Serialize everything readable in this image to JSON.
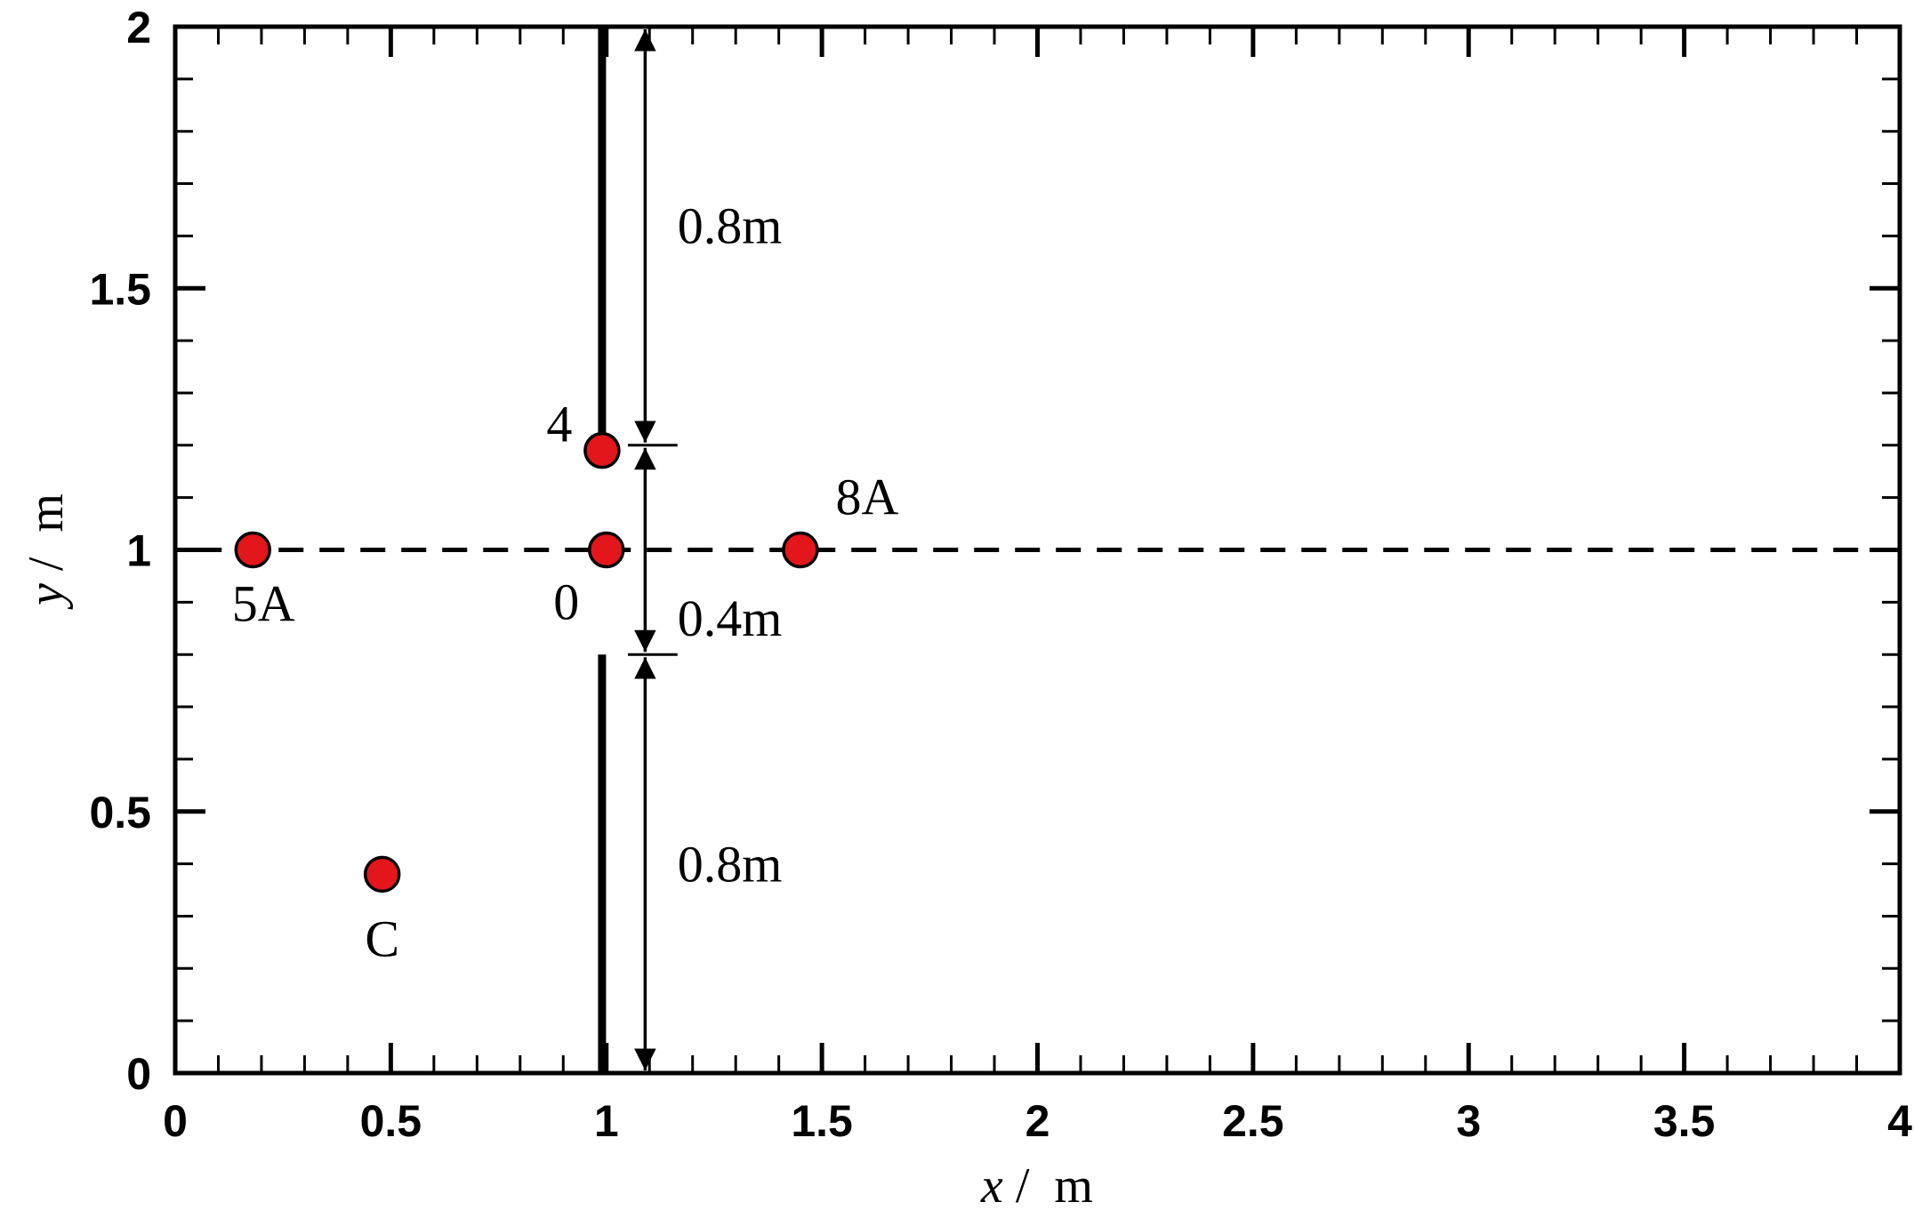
{
  "chart_data": {
    "type": "scatter",
    "xlabel_var": "x",
    "xlabel_unit": "m",
    "ylabel_var": "y",
    "ylabel_unit": "m",
    "xlim": [
      0,
      4
    ],
    "ylim": [
      0,
      2
    ],
    "x_ticks": [
      "0",
      "0.5",
      "1",
      "1.5",
      "2",
      "2.5",
      "3",
      "3.5",
      "4"
    ],
    "y_ticks": [
      "0",
      "0.5",
      "1",
      "1.5",
      "2"
    ],
    "point_color": "#e3161b",
    "points": [
      {
        "label": "5A",
        "x": 0.18,
        "y": 1.0
      },
      {
        "label": "0",
        "x": 1.0,
        "y": 1.0
      },
      {
        "label": "8A",
        "x": 1.45,
        "y": 1.0
      },
      {
        "label": "4",
        "x": 0.99,
        "y": 1.19
      },
      {
        "label": "C",
        "x": 0.48,
        "y": 0.38
      }
    ],
    "centerline_y": 1.0,
    "walls": [
      {
        "x": 0.99,
        "y_from": 1.2,
        "y_to": 2.0
      },
      {
        "x": 0.99,
        "y_from": 0.0,
        "y_to": 0.8
      }
    ],
    "dimensions": [
      {
        "label": "0.8m",
        "y_from": 1.2,
        "y_to": 2.0
      },
      {
        "label": "0.4m",
        "y_from": 0.8,
        "y_to": 1.2
      },
      {
        "label": "0.8m",
        "y_from": 0.0,
        "y_to": 0.8
      }
    ]
  }
}
